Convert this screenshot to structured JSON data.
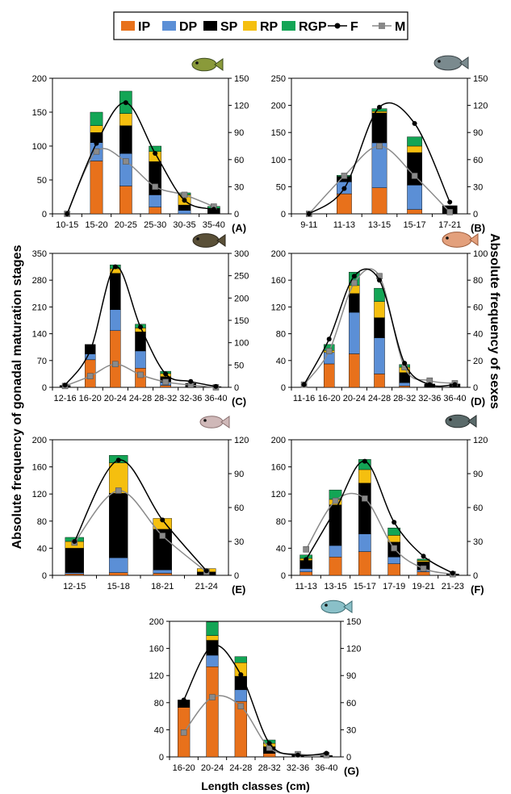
{
  "legend": {
    "items": [
      {
        "label": "IP",
        "kind": "bar",
        "color": "#e8711b"
      },
      {
        "label": "DP",
        "kind": "bar",
        "color": "#5b8fd6"
      },
      {
        "label": "SP",
        "kind": "bar",
        "color": "#000000"
      },
      {
        "label": "RP",
        "kind": "bar",
        "color": "#f5bf0f"
      },
      {
        "label": "RGP",
        "kind": "bar",
        "color": "#13a555"
      },
      {
        "label": "F",
        "kind": "line",
        "color": "#000000"
      },
      {
        "label": "M",
        "kind": "line",
        "color": "#888888"
      }
    ]
  },
  "titles": {
    "ylabel_left": "Absolute frequency of gonadal maturation stages",
    "ylabel_right": "Absolute frequency of sexes",
    "xlabel": "Length classes (cm)"
  },
  "colors": {
    "IP": "#e8711b",
    "DP": "#5b8fd6",
    "SP": "#000000",
    "RP": "#f5bf0f",
    "RGP": "#13a555",
    "F": "#000000",
    "M": "#8a8a8a"
  },
  "chart_data": [
    {
      "panel": "(A)",
      "type": "bar",
      "categories": [
        "10-15",
        "15-20",
        "20-25",
        "25-30",
        "30-35",
        "35-40"
      ],
      "ylim": [
        0,
        200
      ],
      "yticks": [
        0,
        50,
        100,
        150,
        200
      ],
      "y2lim": [
        0,
        150
      ],
      "y2ticks": [
        0,
        30,
        60,
        90,
        120,
        150
      ],
      "series": [
        {
          "name": "IP",
          "values": [
            0,
            78,
            41,
            10,
            0,
            0
          ]
        },
        {
          "name": "DP",
          "values": [
            0,
            27,
            48,
            18,
            5,
            0
          ]
        },
        {
          "name": "SP",
          "values": [
            0,
            15,
            41,
            49,
            8,
            8
          ]
        },
        {
          "name": "RP",
          "values": [
            0,
            10,
            18,
            15,
            15,
            0
          ]
        },
        {
          "name": "RGP",
          "values": [
            0,
            20,
            33,
            8,
            3,
            3
          ]
        },
        {
          "name": "F",
          "axis": "right",
          "values": [
            0,
            78,
            123,
            67,
            15,
            5
          ]
        },
        {
          "name": "M",
          "axis": "right",
          "values": [
            0,
            69,
            58,
            30,
            21,
            8
          ]
        }
      ]
    },
    {
      "panel": "(B)",
      "type": "bar",
      "categories": [
        "9-11",
        "11-13",
        "13-15",
        "15-17",
        "17-21"
      ],
      "ylim": [
        0,
        250
      ],
      "yticks": [
        0,
        50,
        100,
        150,
        200,
        250
      ],
      "y2lim": [
        0,
        150
      ],
      "y2ticks": [
        0,
        30,
        60,
        90,
        120,
        150
      ],
      "series": [
        {
          "name": "IP",
          "values": [
            0,
            37,
            48,
            8,
            0
          ]
        },
        {
          "name": "DP",
          "values": [
            0,
            22,
            83,
            45,
            0
          ]
        },
        {
          "name": "SP",
          "values": [
            0,
            10,
            55,
            60,
            15
          ]
        },
        {
          "name": "RP",
          "values": [
            0,
            0,
            3,
            12,
            0
          ]
        },
        {
          "name": "RGP",
          "values": [
            0,
            2,
            5,
            17,
            0
          ]
        },
        {
          "name": "F",
          "axis": "right",
          "values": [
            0,
            28,
            118,
            100,
            13
          ]
        },
        {
          "name": "M",
          "axis": "right",
          "values": [
            0,
            42,
            75,
            42,
            2
          ]
        }
      ]
    },
    {
      "panel": "(C)",
      "type": "bar",
      "categories": [
        "12-16",
        "16-20",
        "20-24",
        "24-28",
        "28-32",
        "32-36",
        "36-40"
      ],
      "ylim": [
        0,
        350
      ],
      "yticks": [
        0,
        70,
        140,
        210,
        280,
        350
      ],
      "y2lim": [
        0,
        300
      ],
      "y2ticks": [
        0,
        50,
        100,
        150,
        200,
        250,
        300
      ],
      "series": [
        {
          "name": "IP",
          "values": [
            0,
            72,
            148,
            50,
            5,
            0,
            0
          ]
        },
        {
          "name": "DP",
          "values": [
            0,
            15,
            55,
            45,
            8,
            0,
            0
          ]
        },
        {
          "name": "SP",
          "values": [
            5,
            25,
            95,
            50,
            15,
            10,
            2
          ]
        },
        {
          "name": "RP",
          "values": [
            0,
            0,
            12,
            10,
            8,
            0,
            0
          ]
        },
        {
          "name": "RGP",
          "values": [
            0,
            0,
            10,
            10,
            6,
            0,
            0
          ]
        },
        {
          "name": "F",
          "axis": "right",
          "values": [
            5,
            82,
            270,
            135,
            30,
            13,
            2
          ]
        },
        {
          "name": "M",
          "axis": "right",
          "values": [
            3,
            25,
            52,
            28,
            12,
            5,
            0
          ]
        }
      ]
    },
    {
      "panel": "(D)",
      "type": "bar",
      "categories": [
        "11-16",
        "16-20",
        "20-24",
        "24-28",
        "28-32",
        "32-36",
        "36-40"
      ],
      "ylim": [
        0,
        200
      ],
      "yticks": [
        0,
        40,
        80,
        120,
        160,
        200
      ],
      "y2lim": [
        0,
        100
      ],
      "y2ticks": [
        0,
        20,
        40,
        60,
        80,
        100
      ],
      "series": [
        {
          "name": "IP",
          "values": [
            0,
            35,
            50,
            20,
            2,
            0,
            0
          ]
        },
        {
          "name": "DP",
          "values": [
            0,
            17,
            62,
            54,
            5,
            0,
            0
          ]
        },
        {
          "name": "SP",
          "values": [
            0,
            0,
            28,
            30,
            15,
            5,
            5
          ]
        },
        {
          "name": "RP",
          "values": [
            0,
            3,
            12,
            24,
            8,
            0,
            0
          ]
        },
        {
          "name": "RGP",
          "values": [
            0,
            9,
            20,
            20,
            4,
            0,
            0
          ]
        },
        {
          "name": "F",
          "axis": "right",
          "values": [
            2,
            36,
            83,
            80,
            18,
            2,
            2
          ]
        },
        {
          "name": "M",
          "axis": "right",
          "values": [
            2,
            27,
            78,
            83,
            15,
            5,
            3
          ]
        }
      ]
    },
    {
      "panel": "(E)",
      "type": "bar",
      "categories": [
        "12-15",
        "15-18",
        "18-21",
        "21-24"
      ],
      "ylim": [
        0,
        200
      ],
      "yticks": [
        0,
        40,
        80,
        120,
        160,
        200
      ],
      "y2lim": [
        0,
        120
      ],
      "y2ticks": [
        0,
        30,
        60,
        90,
        120
      ],
      "series": [
        {
          "name": "IP",
          "values": [
            2,
            4,
            3,
            0
          ]
        },
        {
          "name": "DP",
          "values": [
            2,
            22,
            5,
            0
          ]
        },
        {
          "name": "SP",
          "values": [
            36,
            95,
            60,
            5
          ]
        },
        {
          "name": "RP",
          "values": [
            10,
            45,
            16,
            5
          ]
        },
        {
          "name": "RGP",
          "values": [
            6,
            11,
            0,
            0
          ]
        },
        {
          "name": "F",
          "axis": "right",
          "values": [
            30,
            102,
            49,
            4
          ]
        },
        {
          "name": "M",
          "axis": "right",
          "values": [
            29,
            75,
            35,
            3
          ]
        }
      ]
    },
    {
      "panel": "(F)",
      "type": "bar",
      "categories": [
        "11-13",
        "13-15",
        "15-17",
        "17-19",
        "19-21",
        "21-23"
      ],
      "ylim": [
        0,
        200
      ],
      "yticks": [
        0,
        40,
        80,
        120,
        160,
        200
      ],
      "y2lim": [
        0,
        120
      ],
      "y2ticks": [
        0,
        30,
        60,
        90,
        120
      ],
      "series": [
        {
          "name": "IP",
          "values": [
            5,
            27,
            35,
            17,
            5,
            0
          ]
        },
        {
          "name": "DP",
          "values": [
            5,
            17,
            26,
            10,
            3,
            0
          ]
        },
        {
          "name": "SP",
          "values": [
            12,
            60,
            75,
            22,
            12,
            2
          ]
        },
        {
          "name": "RP",
          "values": [
            3,
            8,
            20,
            10,
            2,
            0
          ]
        },
        {
          "name": "RGP",
          "values": [
            5,
            14,
            15,
            11,
            2,
            0
          ]
        },
        {
          "name": "F",
          "axis": "right",
          "values": [
            14,
            58,
            101,
            47,
            17,
            2
          ]
        },
        {
          "name": "M",
          "axis": "right",
          "values": [
            23,
            66,
            68,
            24,
            6,
            1
          ]
        }
      ]
    },
    {
      "panel": "(G)",
      "type": "bar",
      "categories": [
        "16-20",
        "20-24",
        "24-28",
        "28-32",
        "32-36",
        "36-40"
      ],
      "ylim": [
        0,
        200
      ],
      "yticks": [
        0,
        40,
        80,
        120,
        160,
        200
      ],
      "y2lim": [
        0,
        150
      ],
      "y2ticks": [
        0,
        30,
        60,
        90,
        120,
        150
      ],
      "series": [
        {
          "name": "IP",
          "values": [
            73,
            133,
            82,
            5,
            0,
            0
          ]
        },
        {
          "name": "DP",
          "values": [
            0,
            17,
            17,
            0,
            0,
            0
          ]
        },
        {
          "name": "SP",
          "values": [
            11,
            22,
            20,
            10,
            3,
            2
          ]
        },
        {
          "name": "RP",
          "values": [
            0,
            7,
            20,
            5,
            0,
            0
          ]
        },
        {
          "name": "RGP",
          "values": [
            0,
            20,
            9,
            5,
            0,
            0
          ]
        },
        {
          "name": "F",
          "axis": "right",
          "values": [
            63,
            123,
            91,
            15,
            2,
            4
          ]
        },
        {
          "name": "M",
          "axis": "right",
          "values": [
            27,
            66,
            56,
            10,
            3,
            2
          ]
        }
      ]
    }
  ]
}
